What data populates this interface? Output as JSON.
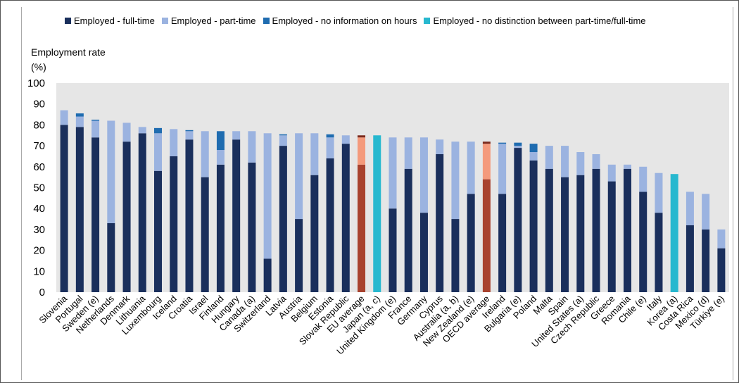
{
  "legend": {
    "items": [
      {
        "label": "Employed - full-time",
        "color": "#1a2f5c"
      },
      {
        "label": "Employed - part-time",
        "color": "#9bb3e0"
      },
      {
        "label": "Employed - no information on hours",
        "color": "#1f6cb0"
      },
      {
        "label": "Employed - no distinction between part-time/full-time",
        "color": "#27b8cf"
      }
    ]
  },
  "axis": {
    "ylabel_line1": "Employment rate",
    "ylabel_line2": "(%)"
  },
  "colors": {
    "full_time": "#1a2f5c",
    "part_time": "#9bb3e0",
    "no_info": "#1f6cb0",
    "no_distinction": "#27b8cf",
    "avg_full": "#a8422e",
    "avg_part": "#f49a7c",
    "avg_noinfo": "#7a2a1d",
    "plot_bg": "#e6e6e6"
  },
  "chart_data": {
    "type": "bar",
    "stacked": true,
    "ylabel": "Employment rate (%)",
    "ylim": [
      0,
      100
    ],
    "yticks": [
      0,
      10,
      20,
      30,
      40,
      50,
      60,
      70,
      80,
      90,
      100
    ],
    "grid": false,
    "legend_position": "top",
    "categories": [
      "Slovenia",
      "Portugal",
      "Sweden (e)",
      "Netherlands",
      "Denmark",
      "Lithuania",
      "Luxembourg",
      "Iceland",
      "Croatia",
      "Israel",
      "Finland",
      "Hungary",
      "Canada (a)",
      "Switzerland",
      "Latvia",
      "Austria",
      "Belgium",
      "Estonia",
      "Slovak Republic",
      "EU average",
      "Japan (a, c)",
      "United Kingdom (e)",
      "France",
      "Germany",
      "Cyprus",
      "Australia (a, b)",
      "New Zealand (e)",
      "OECD average",
      "Ireland",
      "Bulgaria (e)",
      "Poland",
      "Malta",
      "Spain",
      "United States (a)",
      "Czech Republic",
      "Greece",
      "Romania",
      "Chile (e)",
      "Italy",
      "Korea (a)",
      "Costa Rica",
      "Mexico (d)",
      "Türkiye (e)"
    ],
    "series": [
      {
        "name": "Employed - full-time",
        "values": [
          80,
          79,
          74,
          33,
          72,
          76,
          58,
          65,
          73,
          55,
          61,
          73,
          62,
          16,
          70,
          35,
          56,
          64,
          71,
          61,
          0,
          40,
          59,
          38,
          66,
          35,
          47,
          54,
          47,
          69,
          63,
          59,
          55,
          56,
          59,
          53,
          59,
          48,
          38,
          0,
          32,
          30,
          21
        ]
      },
      {
        "name": "Employed - part-time",
        "values": [
          7,
          5,
          8,
          49,
          9,
          3,
          18,
          13,
          4,
          22,
          7,
          4,
          15,
          60,
          5,
          41,
          20,
          10,
          4,
          13,
          0,
          34,
          15,
          36,
          7,
          37,
          25,
          17,
          24,
          1,
          4,
          11,
          15,
          11,
          7,
          8,
          2,
          12,
          19,
          0,
          16,
          17,
          9
        ]
      },
      {
        "name": "Employed - no information on hours",
        "values": [
          0,
          1.5,
          0.5,
          0,
          0,
          0,
          2.5,
          0,
          0.5,
          0,
          9,
          0,
          0,
          0,
          0.5,
          0,
          0,
          1.5,
          0,
          1,
          0,
          0,
          0,
          0,
          0,
          0,
          0,
          1,
          0.5,
          1.5,
          4,
          0,
          0,
          0,
          0,
          0,
          0,
          0,
          0,
          0,
          0,
          0,
          0
        ]
      },
      {
        "name": "Employed - no distinction between part-time/full-time",
        "values": [
          0,
          0,
          0,
          0,
          0,
          0,
          0,
          0,
          0,
          0,
          0,
          0,
          0,
          0,
          0,
          0,
          0,
          0,
          0,
          0,
          75,
          0,
          0,
          0,
          0,
          0,
          0,
          0,
          0,
          0,
          0,
          0,
          0,
          0,
          0,
          0,
          0,
          0,
          0,
          56.5,
          0,
          0,
          0
        ]
      }
    ],
    "highlight_categories": [
      "EU average",
      "OECD average"
    ]
  }
}
